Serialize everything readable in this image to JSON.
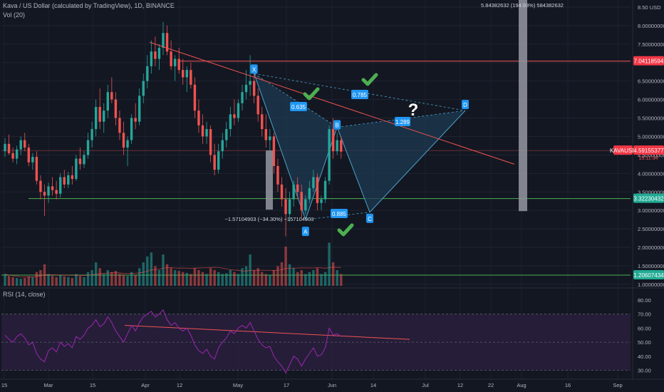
{
  "header": {
    "symbol_line": "Kava / US Dollar (calculated by TradingView), 1D, BINANCE",
    "volume_label": "Vol (20)",
    "rsi_label": "RSI (14, close)"
  },
  "colors": {
    "background": "#131722",
    "bull": "#26a69a",
    "bear": "#ef5350",
    "pattern_fill": "#1e3a52",
    "pattern_line": "#4aa3c9",
    "label_blue": "#2196f3",
    "check": "#4caf50",
    "rsi_line": "#9c27b0",
    "rsi_band": "#2a1e3d"
  },
  "chart_data": {
    "type": "candlestick",
    "price_axis": {
      "ticks": [
        "8.50 USD",
        "8.00000000",
        "7.50000000",
        "7.00000000",
        "6.50000000",
        "6.00000000",
        "5.50000000",
        "5.00000000",
        "4.50000000",
        "4.00000000",
        "3.50000000",
        "3.00000000",
        "2.50000000",
        "2.00000000",
        "1.50000000",
        "1.00000000"
      ],
      "range": [
        0.95,
        8.5
      ]
    },
    "rsi_axis": {
      "ticks": [
        "80.00",
        "70.00",
        "60.00",
        "50.00",
        "40.00",
        "30.00"
      ],
      "range": [
        27,
        84
      ]
    },
    "x_axis_labels": [
      "15",
      "Mar",
      "15",
      "Apr",
      "12",
      "May",
      "17",
      "Jun",
      "14",
      "Jul",
      "12",
      "22",
      "Aug",
      "16",
      "Sep"
    ],
    "price_labels": {
      "resistance": "7.04118594",
      "current": "4.59155377",
      "current_symbol": "KAVAUSD",
      "countdown": "15:11:34",
      "support": "3.32230432",
      "volume_level": "1.20607434"
    },
    "levels": {
      "resistance": 7.04,
      "mid": 4.62,
      "support": 3.32,
      "volume_level": 1.206
    },
    "pattern_points": {
      "X": {
        "label": "X",
        "price": 6.5
      },
      "A": {
        "label": "A",
        "price": 2.85
      },
      "B": {
        "label": "B",
        "price": 5.25
      },
      "C": {
        "label": "C",
        "price": 2.85
      },
      "D": {
        "label": "D",
        "price": 5.7
      }
    },
    "ratios": [
      "0.635",
      "0.785",
      "1.289",
      "0.885"
    ],
    "measure_down": "−1.57104903 (−34.30%) −157104903",
    "measure_up": "5.84382632 (194.93%) 584382632",
    "question_mark": "?",
    "candles": [
      [
        4.6,
        4.95,
        4.45,
        4.8
      ],
      [
        4.8,
        5.05,
        4.5,
        4.55
      ],
      [
        4.55,
        4.7,
        4.3,
        4.4
      ],
      [
        4.4,
        4.75,
        4.25,
        4.65
      ],
      [
        4.65,
        5.0,
        4.5,
        4.9
      ],
      [
        4.9,
        5.1,
        4.6,
        4.7
      ],
      [
        4.7,
        4.8,
        4.2,
        4.3
      ],
      [
        4.3,
        4.55,
        4.1,
        4.45
      ],
      [
        4.45,
        4.6,
        3.7,
        3.8
      ],
      [
        3.8,
        3.95,
        3.3,
        3.5
      ],
      [
        3.5,
        3.7,
        2.85,
        3.4
      ],
      [
        3.4,
        3.75,
        3.2,
        3.65
      ],
      [
        3.65,
        3.9,
        3.4,
        3.55
      ],
      [
        3.55,
        3.8,
        3.3,
        3.45
      ],
      [
        3.45,
        4.0,
        3.35,
        3.9
      ],
      [
        3.9,
        4.1,
        3.6,
        3.7
      ],
      [
        3.7,
        4.05,
        3.6,
        3.95
      ],
      [
        3.95,
        4.2,
        3.7,
        3.85
      ],
      [
        3.85,
        4.5,
        3.8,
        4.4
      ],
      [
        4.4,
        4.7,
        4.1,
        4.25
      ],
      [
        4.25,
        4.6,
        4.15,
        4.5
      ],
      [
        4.5,
        5.1,
        4.4,
        4.9
      ],
      [
        4.9,
        5.4,
        4.7,
        5.2
      ],
      [
        5.2,
        6.0,
        5.0,
        5.8
      ],
      [
        5.8,
        6.3,
        5.2,
        5.4
      ],
      [
        5.4,
        5.9,
        5.1,
        5.7
      ],
      [
        5.7,
        6.4,
        5.5,
        6.2
      ],
      [
        6.2,
        6.6,
        5.9,
        6.0
      ],
      [
        6.0,
        6.2,
        5.3,
        5.5
      ],
      [
        5.5,
        5.7,
        4.9,
        5.1
      ],
      [
        5.1,
        5.4,
        4.5,
        4.7
      ],
      [
        4.7,
        5.0,
        4.2,
        4.9
      ],
      [
        4.9,
        5.6,
        4.8,
        5.5
      ],
      [
        5.5,
        5.9,
        5.2,
        5.4
      ],
      [
        5.4,
        6.3,
        5.3,
        6.1
      ],
      [
        6.1,
        6.7,
        5.9,
        6.5
      ],
      [
        6.5,
        7.2,
        6.3,
        6.9
      ],
      [
        6.9,
        7.6,
        6.7,
        7.3
      ],
      [
        7.3,
        7.7,
        6.9,
        7.1
      ],
      [
        7.1,
        7.5,
        6.8,
        7.4
      ],
      [
        7.4,
        8.1,
        7.2,
        7.8
      ],
      [
        7.8,
        8.0,
        7.2,
        7.3
      ],
      [
        7.3,
        7.6,
        6.8,
        6.9
      ],
      [
        6.9,
        7.2,
        6.5,
        7.1
      ],
      [
        7.1,
        7.4,
        6.7,
        6.8
      ],
      [
        6.8,
        7.1,
        6.4,
        6.6
      ],
      [
        6.6,
        6.9,
        6.2,
        6.8
      ],
      [
        6.8,
        7.0,
        6.3,
        6.4
      ],
      [
        6.4,
        6.6,
        5.5,
        5.7
      ],
      [
        5.7,
        6.0,
        5.1,
        5.3
      ],
      [
        5.3,
        5.6,
        4.8,
        5.0
      ],
      [
        5.0,
        5.4,
        4.8,
        5.2
      ],
      [
        5.2,
        5.3,
        4.3,
        4.5
      ],
      [
        4.5,
        4.8,
        3.95,
        4.1
      ],
      [
        4.1,
        4.8,
        4.0,
        4.6
      ],
      [
        4.6,
        5.1,
        4.4,
        4.9
      ],
      [
        4.9,
        5.4,
        4.7,
        5.2
      ],
      [
        5.2,
        5.8,
        5.0,
        5.6
      ],
      [
        5.6,
        6.0,
        5.3,
        5.5
      ],
      [
        5.5,
        6.0,
        5.4,
        5.9
      ],
      [
        5.9,
        6.4,
        5.7,
        6.2
      ],
      [
        6.2,
        6.8,
        6.0,
        6.4
      ],
      [
        6.4,
        7.2,
        6.1,
        6.5
      ],
      [
        6.5,
        6.7,
        5.9,
        6.1
      ],
      [
        6.1,
        6.3,
        5.4,
        5.6
      ],
      [
        5.6,
        5.8,
        5.0,
        5.2
      ],
      [
        5.2,
        5.6,
        4.7,
        4.9
      ],
      [
        4.9,
        5.2,
        4.6,
        5.0
      ],
      [
        5.0,
        5.1,
        4.0,
        4.2
      ],
      [
        4.2,
        4.4,
        3.5,
        3.7
      ],
      [
        3.7,
        3.9,
        3.1,
        3.3
      ],
      [
        3.3,
        3.6,
        2.3,
        2.9
      ],
      [
        2.9,
        3.5,
        2.7,
        3.3
      ],
      [
        3.3,
        3.8,
        3.1,
        3.7
      ],
      [
        3.7,
        3.9,
        3.3,
        3.5
      ],
      [
        3.5,
        3.7,
        2.8,
        3.0
      ],
      [
        3.0,
        3.4,
        2.9,
        3.3
      ],
      [
        3.3,
        3.8,
        3.2,
        3.6
      ],
      [
        3.6,
        4.1,
        3.5,
        3.9
      ],
      [
        3.9,
        4.0,
        3.0,
        3.2
      ],
      [
        3.2,
        3.4,
        3.0,
        3.3
      ],
      [
        3.3,
        3.9,
        3.2,
        3.8
      ],
      [
        3.8,
        5.3,
        3.7,
        5.2
      ],
      [
        5.2,
        5.5,
        4.4,
        4.6
      ],
      [
        4.6,
        5.1,
        4.5,
        4.9
      ],
      [
        4.9,
        5.0,
        4.4,
        4.59
      ]
    ],
    "volume": [
      0.3,
      0.25,
      0.22,
      0.2,
      0.18,
      0.2,
      0.24,
      0.22,
      0.35,
      0.4,
      0.55,
      0.3,
      0.25,
      0.22,
      0.28,
      0.24,
      0.22,
      0.2,
      0.3,
      0.25,
      0.22,
      0.35,
      0.4,
      0.6,
      0.45,
      0.3,
      0.4,
      0.35,
      0.38,
      0.3,
      0.28,
      0.25,
      0.35,
      0.28,
      0.45,
      0.6,
      0.75,
      0.85,
      0.5,
      0.4,
      0.8,
      0.55,
      0.45,
      0.4,
      0.38,
      0.35,
      0.33,
      0.3,
      0.45,
      0.4,
      0.35,
      0.3,
      0.45,
      0.4,
      0.35,
      0.3,
      0.32,
      0.4,
      0.35,
      0.3,
      0.45,
      0.5,
      0.8,
      0.4,
      0.45,
      0.35,
      0.3,
      0.28,
      0.4,
      0.5,
      0.6,
      1.0,
      0.55,
      0.45,
      0.35,
      0.4,
      0.3,
      0.35,
      0.4,
      0.45,
      0.3,
      0.35,
      1.1,
      0.6,
      0.4,
      0.3
    ],
    "rsi": [
      55,
      52,
      50,
      54,
      56,
      53,
      48,
      50,
      42,
      38,
      36,
      44,
      46,
      43,
      50,
      47,
      49,
      46,
      54,
      52,
      55,
      60,
      62,
      66,
      61,
      63,
      68,
      64,
      58,
      54,
      50,
      56,
      62,
      58,
      64,
      68,
      70,
      72,
      68,
      70,
      73,
      66,
      62,
      64,
      60,
      58,
      60,
      55,
      48,
      44,
      42,
      45,
      40,
      38,
      46,
      50,
      53,
      58,
      56,
      60,
      62,
      60,
      64,
      58,
      52,
      48,
      46,
      47,
      40,
      36,
      33,
      28,
      34,
      40,
      38,
      33,
      38,
      42,
      46,
      40,
      41,
      46,
      60,
      55,
      56,
      54
    ]
  }
}
